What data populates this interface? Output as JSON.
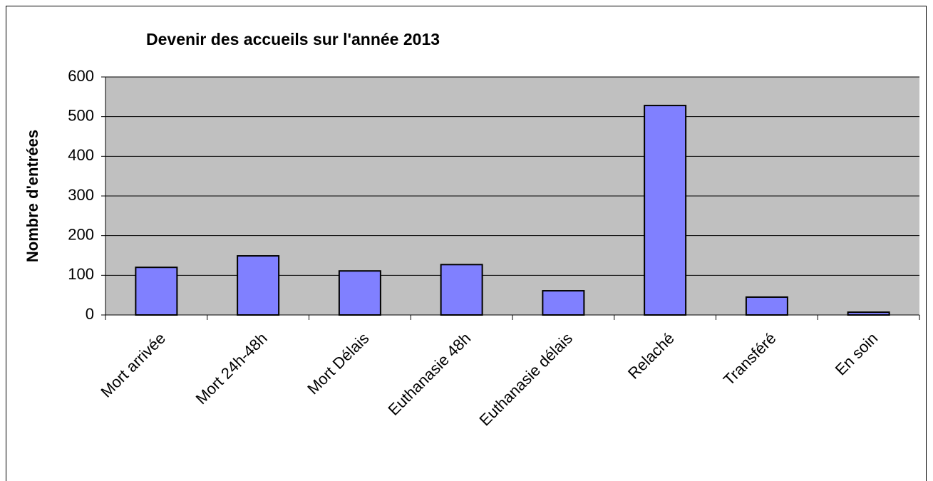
{
  "chart_data": {
    "type": "bar",
    "title": "Devenir des accueils sur l'année 2013",
    "y_label": "Nombre d'entrées",
    "categories": [
      "Mort arrivée",
      "Mort 24h-48h",
      "Mort Délais",
      "Euthanasie 48h",
      "Euthanasie délais",
      "Relaché",
      "Transféré",
      "En soin"
    ],
    "values": [
      120,
      149,
      111,
      127,
      61,
      528,
      45,
      7
    ],
    "color": "#8080ff",
    "ylim": [
      0,
      600
    ],
    "yticks": [
      0,
      100,
      200,
      300,
      400,
      500,
      600
    ],
    "grid": true
  }
}
